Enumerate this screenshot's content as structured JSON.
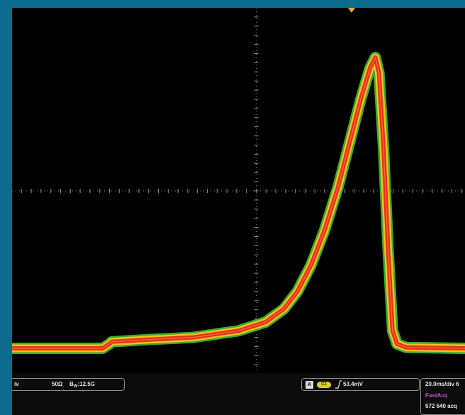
{
  "vertical": {
    "scale_fragment": "iv",
    "termination": "50Ω",
    "bandwidth_prefix": "B",
    "bandwidth_sub": "W",
    "bandwidth_value": ":12.5G"
  },
  "trigger": {
    "mode_icon": "A",
    "source": "C1",
    "slope_icon": "rising-edge-icon",
    "level": "53.4mV"
  },
  "acquisition": {
    "horizontal_scale": "20.0ms/div  6",
    "mode": "FastAcq",
    "count": "572 640 acq"
  },
  "colors": {
    "frame": "#0d6c8e",
    "screen_bg": "#000000",
    "graticule": "#8c8c8c",
    "trace_outer": "#3fbf3a",
    "trace_mid": "#f2c21a",
    "trace_core": "#e8321e",
    "trigger_marker": "#f2b01e",
    "acq_mode_text": "#c24fc9"
  },
  "waveform": {
    "description_units": "time in divisions from left edge, amplitude in divisions from bottom",
    "divisions_x": 10,
    "divisions_y": 8,
    "points": [
      [
        0,
        0.9
      ],
      [
        2.0,
        0.9
      ],
      [
        2.15,
        1.0
      ],
      [
        2.2,
        1.05
      ],
      [
        3.0,
        1.1
      ],
      [
        4.0,
        1.15
      ],
      [
        5.0,
        1.3
      ],
      [
        5.6,
        1.5
      ],
      [
        6.0,
        1.8
      ],
      [
        6.3,
        2.2
      ],
      [
        6.6,
        2.8
      ],
      [
        6.9,
        3.6
      ],
      [
        7.2,
        4.6
      ],
      [
        7.45,
        5.6
      ],
      [
        7.7,
        6.6
      ],
      [
        7.9,
        7.3
      ],
      [
        8.02,
        7.55
      ],
      [
        8.1,
        7.2
      ],
      [
        8.2,
        5.5
      ],
      [
        8.3,
        3.2
      ],
      [
        8.4,
        1.3
      ],
      [
        8.5,
        1.0
      ],
      [
        8.7,
        0.92
      ],
      [
        10.0,
        0.9
      ]
    ]
  }
}
